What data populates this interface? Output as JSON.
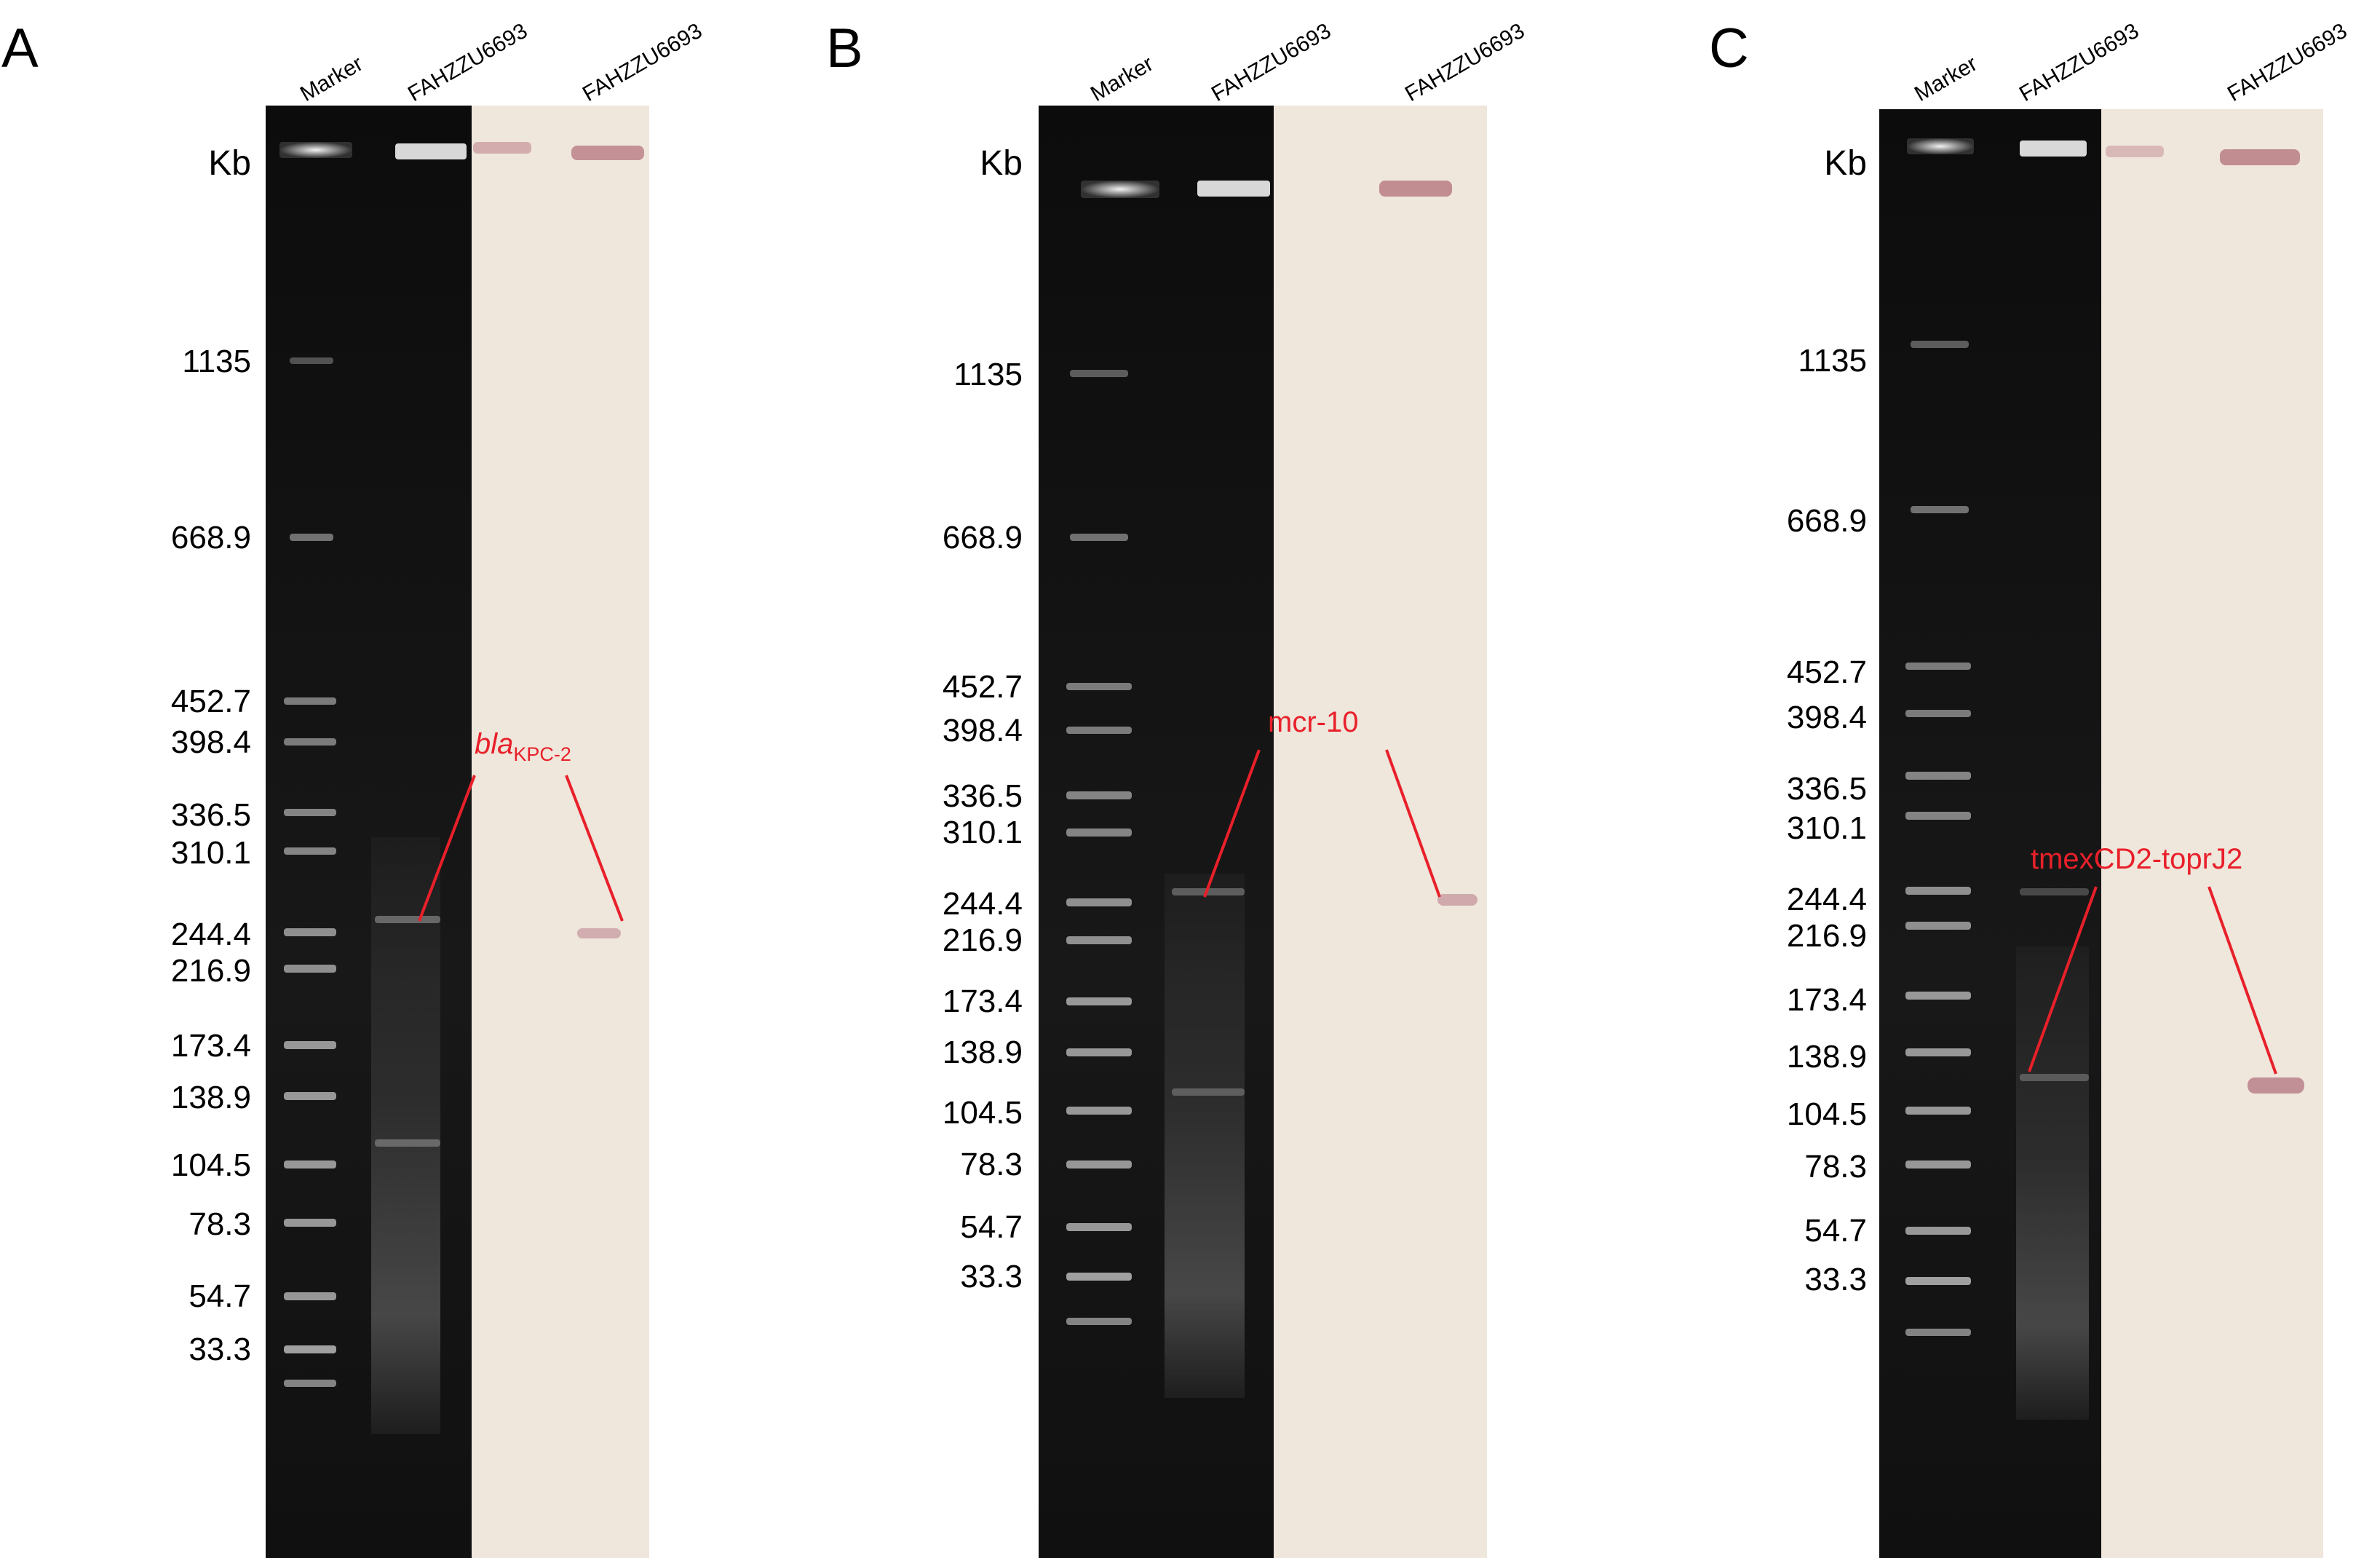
{
  "panels": [
    {
      "letter": "A",
      "lanes": [
        "Marker",
        "FAHZZU6693",
        "FAHZZU6693"
      ],
      "unit": "Kb",
      "markers": [
        "1135",
        "668.9",
        "452.7",
        "398.4",
        "336.5",
        "310.1",
        "244.4",
        "216.9",
        "173.4",
        "138.9",
        "104.5",
        "78.3",
        "54.7",
        "33.3"
      ],
      "annotation": {
        "italic": "bla",
        "sub": "KPC-2"
      }
    },
    {
      "letter": "B",
      "lanes": [
        "Marker",
        "FAHZZU6693",
        "FAHZZU6693"
      ],
      "unit": "Kb",
      "markers": [
        "1135",
        "668.9",
        "452.7",
        "398.4",
        "336.5",
        "310.1",
        "244.4",
        "216.9",
        "173.4",
        "138.9",
        "104.5",
        "78.3",
        "54.7",
        "33.3"
      ],
      "annotation": {
        "text": "mcr-10"
      }
    },
    {
      "letter": "C",
      "lanes": [
        "Marker",
        "FAHZZU6693",
        "FAHZZU6693"
      ],
      "unit": "Kb",
      "markers": [
        "1135",
        "668.9",
        "452.7",
        "398.4",
        "336.5",
        "310.1",
        "244.4",
        "216.9",
        "173.4",
        "138.9",
        "104.5",
        "78.3",
        "54.7",
        "33.3"
      ],
      "annotation": {
        "text": "tmexCD2-toprJ2"
      }
    }
  ],
  "colors": {
    "gel": "#141414",
    "blot": "#efe6dc",
    "annotation": "#e8202a",
    "text": "#000000"
  }
}
